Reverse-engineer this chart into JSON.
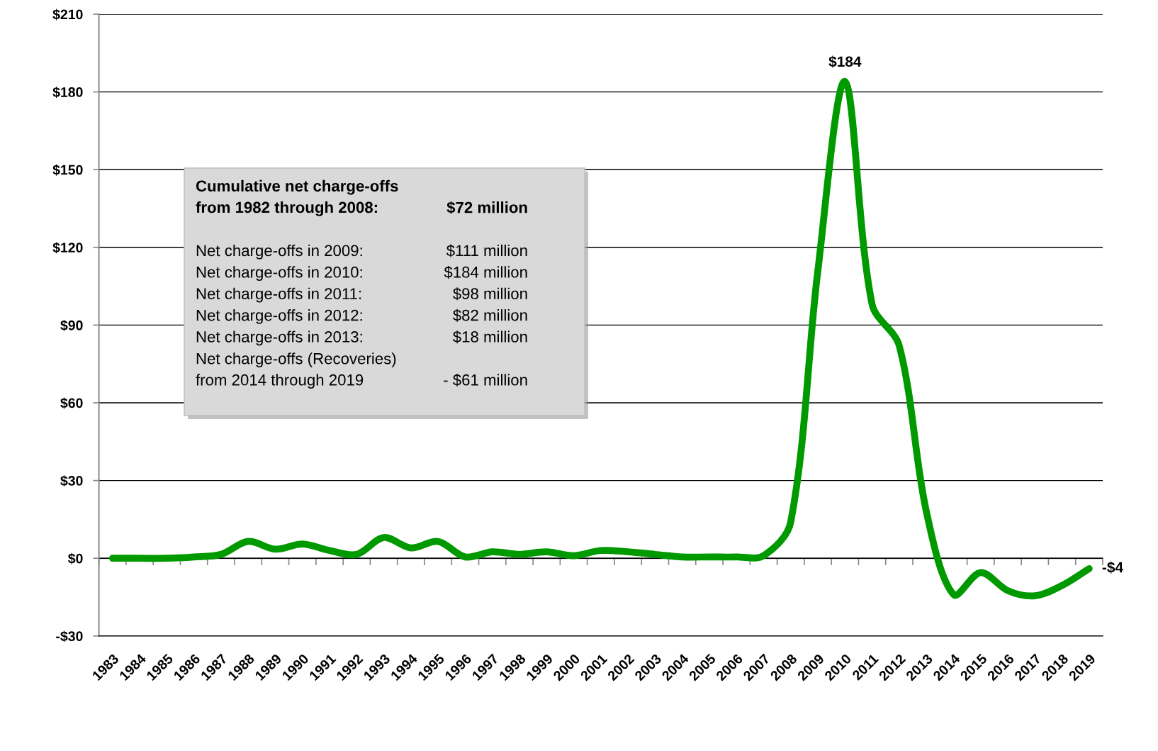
{
  "chart_data": {
    "type": "line",
    "categories": [
      "1983",
      "1984",
      "1985",
      "1986",
      "1987",
      "1988",
      "1989",
      "1990",
      "1991",
      "1992",
      "1993",
      "1994",
      "1995",
      "1996",
      "1997",
      "1998",
      "1999",
      "2000",
      "2001",
      "2002",
      "2003",
      "2004",
      "2005",
      "2006",
      "2007",
      "2008",
      "2009",
      "2010",
      "2011",
      "2012",
      "2013",
      "2014",
      "2015",
      "2016",
      "2017",
      "2018",
      "2019"
    ],
    "series": [
      {
        "color": "#009a00",
        "values": [
          0,
          0,
          0,
          0.5,
          1.5,
          6.5,
          3.5,
          5.5,
          3,
          1.5,
          8,
          4,
          6.5,
          0.5,
          2.5,
          1.5,
          2.5,
          1,
          3,
          2.5,
          1.5,
          0.5,
          0.5,
          0.5,
          1,
          14,
          111,
          184,
          98,
          82,
          18,
          -14,
          -5.5,
          -12.5,
          -14.5,
          -10.5,
          -4
        ],
        "value_labels": [
          null,
          null,
          null,
          null,
          null,
          null,
          null,
          null,
          null,
          null,
          null,
          null,
          null,
          null,
          null,
          null,
          null,
          null,
          null,
          null,
          null,
          null,
          null,
          null,
          null,
          null,
          null,
          "$184",
          null,
          null,
          null,
          null,
          null,
          null,
          null,
          null,
          "-$4"
        ]
      }
    ],
    "ylim": [
      -30,
      210
    ],
    "yticks": [
      {
        "value": -30,
        "label": "-$30"
      },
      {
        "value": 0,
        "label": "$0"
      },
      {
        "value": 30,
        "label": "$30"
      },
      {
        "value": 60,
        "label": "$60"
      },
      {
        "value": 90,
        "label": "$90"
      },
      {
        "value": 120,
        "label": "$120"
      },
      {
        "value": 150,
        "label": "$150"
      },
      {
        "value": 180,
        "label": "$180"
      },
      {
        "value": 210,
        "label": "$210"
      }
    ],
    "grid": "y",
    "annotations": [
      "Cumulative net charge-offs\nfrom 1982 through 2008:",
      "$72 million",
      "Net charge-offs in 2009:",
      "$111 million",
      "Net charge-offs in 2010:",
      "$184 million",
      "Net charge-offs in 2011:",
      "$98 million",
      "Net charge-offs in 2012:",
      "$82 million",
      "Net charge-offs in 2013:",
      "$18 million",
      "Net charge-offs (Recoveries)\nfrom 2014 through 2019",
      "- $61 million"
    ]
  }
}
